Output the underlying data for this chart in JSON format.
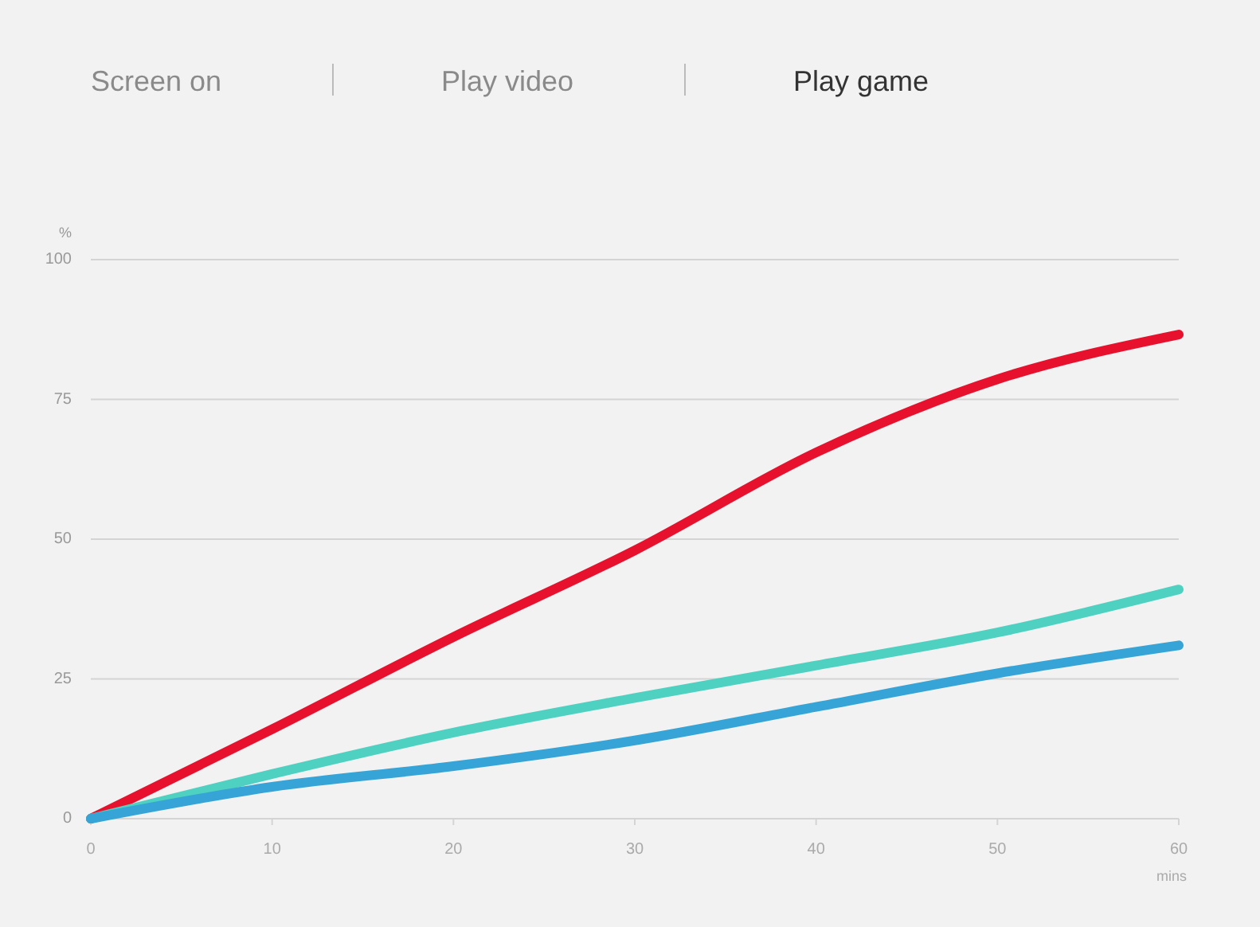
{
  "chart_data": {
    "type": "line",
    "title": "Play game",
    "annotations": [
      "Screen on",
      "Play video"
    ],
    "ylabel": "%",
    "xlabel": "mins",
    "x": [
      0,
      10,
      20,
      30,
      40,
      50,
      60
    ],
    "series": [
      {
        "color": "#e8112d",
        "values": [
          0,
          16,
          32.5,
          48,
          65.5,
          78.6,
          86.6
        ]
      },
      {
        "color": "#4fd1c1",
        "values": [
          0,
          8,
          15.4,
          21.6,
          27.4,
          33.3,
          41
        ]
      },
      {
        "color": "#36a4d6",
        "values": [
          0,
          5.7,
          9.4,
          14,
          20,
          26,
          31
        ]
      }
    ],
    "xlim": [
      0,
      60
    ],
    "xticks": [
      0,
      10,
      20,
      30,
      40,
      50,
      60
    ],
    "ylim": [
      0,
      100
    ],
    "yticks": [
      0,
      25,
      50,
      75,
      100
    ],
    "grid": "y",
    "legend": false,
    "marker": "none",
    "line_style": "solid"
  }
}
